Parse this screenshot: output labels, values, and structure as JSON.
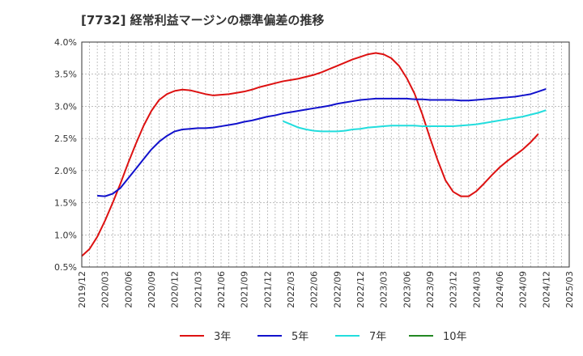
{
  "title": "[7732]  経常利益マージンの標準偏差の推移",
  "chart_data": {
    "type": "line",
    "title": "[7732]  経常利益マージンの標準偏差の推移",
    "xlabel": "",
    "ylabel": "",
    "ylim": [
      0.5,
      4.0
    ],
    "y_ticks": [
      "0.5%",
      "1.0%",
      "1.5%",
      "2.0%",
      "2.5%",
      "3.0%",
      "3.5%",
      "4.0%"
    ],
    "y_tick_values": [
      0.5,
      1.0,
      1.5,
      2.0,
      2.5,
      3.0,
      3.5,
      4.0
    ],
    "x_ticks": [
      "2019/12",
      "2020/03",
      "2020/06",
      "2020/09",
      "2020/12",
      "2021/03",
      "2021/06",
      "2021/09",
      "2021/12",
      "2022/03",
      "2022/06",
      "2022/09",
      "2022/12",
      "2023/03",
      "2023/06",
      "2023/09",
      "2023/12",
      "2024/03",
      "2024/06",
      "2024/09",
      "2024/12",
      "2025/03"
    ],
    "grid": true,
    "legend_position": "bottom",
    "series": [
      {
        "name": "3年",
        "color": "#dd1111",
        "points": [
          [
            "2019/12",
            0.67
          ],
          [
            "2020/01",
            0.78
          ],
          [
            "2020/02",
            0.97
          ],
          [
            "2020/03",
            1.22
          ],
          [
            "2020/04",
            1.5
          ],
          [
            "2020/05",
            1.8
          ],
          [
            "2020/06",
            2.12
          ],
          [
            "2020/07",
            2.42
          ],
          [
            "2020/08",
            2.7
          ],
          [
            "2020/09",
            2.93
          ],
          [
            "2020/10",
            3.1
          ],
          [
            "2020/11",
            3.19
          ],
          [
            "2020/12",
            3.24
          ],
          [
            "2021/01",
            3.26
          ],
          [
            "2021/02",
            3.25
          ],
          [
            "2021/03",
            3.22
          ],
          [
            "2021/04",
            3.19
          ],
          [
            "2021/05",
            3.17
          ],
          [
            "2021/06",
            3.18
          ],
          [
            "2021/07",
            3.19
          ],
          [
            "2021/08",
            3.21
          ],
          [
            "2021/09",
            3.23
          ],
          [
            "2021/10",
            3.26
          ],
          [
            "2021/11",
            3.3
          ],
          [
            "2021/12",
            3.33
          ],
          [
            "2022/01",
            3.36
          ],
          [
            "2022/02",
            3.39
          ],
          [
            "2022/03",
            3.41
          ],
          [
            "2022/04",
            3.43
          ],
          [
            "2022/05",
            3.46
          ],
          [
            "2022/06",
            3.49
          ],
          [
            "2022/07",
            3.53
          ],
          [
            "2022/08",
            3.58
          ],
          [
            "2022/09",
            3.63
          ],
          [
            "2022/10",
            3.68
          ],
          [
            "2022/11",
            3.73
          ],
          [
            "2022/12",
            3.77
          ],
          [
            "2023/01",
            3.81
          ],
          [
            "2023/02",
            3.83
          ],
          [
            "2023/03",
            3.81
          ],
          [
            "2023/04",
            3.75
          ],
          [
            "2023/05",
            3.63
          ],
          [
            "2023/06",
            3.44
          ],
          [
            "2023/07",
            3.2
          ],
          [
            "2023/08",
            2.88
          ],
          [
            "2023/09",
            2.51
          ],
          [
            "2023/10",
            2.16
          ],
          [
            "2023/11",
            1.85
          ],
          [
            "2023/12",
            1.67
          ],
          [
            "2024/01",
            1.6
          ],
          [
            "2024/02",
            1.6
          ],
          [
            "2024/03",
            1.68
          ],
          [
            "2024/04",
            1.8
          ],
          [
            "2024/05",
            1.93
          ],
          [
            "2024/06",
            2.05
          ],
          [
            "2024/07",
            2.15
          ],
          [
            "2024/08",
            2.24
          ],
          [
            "2024/09",
            2.33
          ],
          [
            "2024/10",
            2.44
          ],
          [
            "2024/11",
            2.57
          ]
        ]
      },
      {
        "name": "5年",
        "color": "#1111cc",
        "points": [
          [
            "2020/02",
            1.61
          ],
          [
            "2020/03",
            1.6
          ],
          [
            "2020/04",
            1.64
          ],
          [
            "2020/05",
            1.73
          ],
          [
            "2020/06",
            1.88
          ],
          [
            "2020/07",
            2.03
          ],
          [
            "2020/08",
            2.18
          ],
          [
            "2020/09",
            2.33
          ],
          [
            "2020/10",
            2.45
          ],
          [
            "2020/11",
            2.54
          ],
          [
            "2020/12",
            2.61
          ],
          [
            "2021/01",
            2.64
          ],
          [
            "2021/02",
            2.65
          ],
          [
            "2021/03",
            2.66
          ],
          [
            "2021/04",
            2.66
          ],
          [
            "2021/05",
            2.67
          ],
          [
            "2021/06",
            2.69
          ],
          [
            "2021/07",
            2.71
          ],
          [
            "2021/08",
            2.73
          ],
          [
            "2021/09",
            2.76
          ],
          [
            "2021/10",
            2.78
          ],
          [
            "2021/11",
            2.81
          ],
          [
            "2021/12",
            2.84
          ],
          [
            "2022/01",
            2.86
          ],
          [
            "2022/02",
            2.89
          ],
          [
            "2022/03",
            2.91
          ],
          [
            "2022/04",
            2.93
          ],
          [
            "2022/05",
            2.95
          ],
          [
            "2022/06",
            2.97
          ],
          [
            "2022/07",
            2.99
          ],
          [
            "2022/08",
            3.01
          ],
          [
            "2022/09",
            3.04
          ],
          [
            "2022/10",
            3.06
          ],
          [
            "2022/11",
            3.08
          ],
          [
            "2022/12",
            3.1
          ],
          [
            "2023/01",
            3.11
          ],
          [
            "2023/02",
            3.12
          ],
          [
            "2023/03",
            3.12
          ],
          [
            "2023/04",
            3.12
          ],
          [
            "2023/05",
            3.12
          ],
          [
            "2023/06",
            3.12
          ],
          [
            "2023/07",
            3.11
          ],
          [
            "2023/08",
            3.11
          ],
          [
            "2023/09",
            3.1
          ],
          [
            "2023/10",
            3.1
          ],
          [
            "2023/11",
            3.1
          ],
          [
            "2023/12",
            3.1
          ],
          [
            "2024/01",
            3.09
          ],
          [
            "2024/02",
            3.09
          ],
          [
            "2024/03",
            3.1
          ],
          [
            "2024/04",
            3.11
          ],
          [
            "2024/05",
            3.12
          ],
          [
            "2024/06",
            3.13
          ],
          [
            "2024/07",
            3.14
          ],
          [
            "2024/08",
            3.15
          ],
          [
            "2024/09",
            3.17
          ],
          [
            "2024/10",
            3.19
          ],
          [
            "2024/11",
            3.23
          ],
          [
            "2024/12",
            3.27
          ]
        ]
      },
      {
        "name": "7年",
        "color": "#22dddd",
        "points": [
          [
            "2022/02",
            2.77
          ],
          [
            "2022/03",
            2.72
          ],
          [
            "2022/04",
            2.67
          ],
          [
            "2022/05",
            2.64
          ],
          [
            "2022/06",
            2.62
          ],
          [
            "2022/07",
            2.61
          ],
          [
            "2022/08",
            2.61
          ],
          [
            "2022/09",
            2.61
          ],
          [
            "2022/10",
            2.62
          ],
          [
            "2022/11",
            2.64
          ],
          [
            "2022/12",
            2.65
          ],
          [
            "2023/01",
            2.67
          ],
          [
            "2023/02",
            2.68
          ],
          [
            "2023/03",
            2.69
          ],
          [
            "2023/04",
            2.7
          ],
          [
            "2023/05",
            2.7
          ],
          [
            "2023/06",
            2.7
          ],
          [
            "2023/07",
            2.7
          ],
          [
            "2023/08",
            2.69
          ],
          [
            "2023/09",
            2.69
          ],
          [
            "2023/10",
            2.69
          ],
          [
            "2023/11",
            2.69
          ],
          [
            "2023/12",
            2.69
          ],
          [
            "2024/01",
            2.7
          ],
          [
            "2024/02",
            2.71
          ],
          [
            "2024/03",
            2.72
          ],
          [
            "2024/04",
            2.74
          ],
          [
            "2024/05",
            2.76
          ],
          [
            "2024/06",
            2.78
          ],
          [
            "2024/07",
            2.8
          ],
          [
            "2024/08",
            2.82
          ],
          [
            "2024/09",
            2.84
          ],
          [
            "2024/10",
            2.87
          ],
          [
            "2024/11",
            2.9
          ],
          [
            "2024/12",
            2.94
          ]
        ]
      },
      {
        "name": "10年",
        "color": "#228822",
        "points": []
      }
    ]
  }
}
